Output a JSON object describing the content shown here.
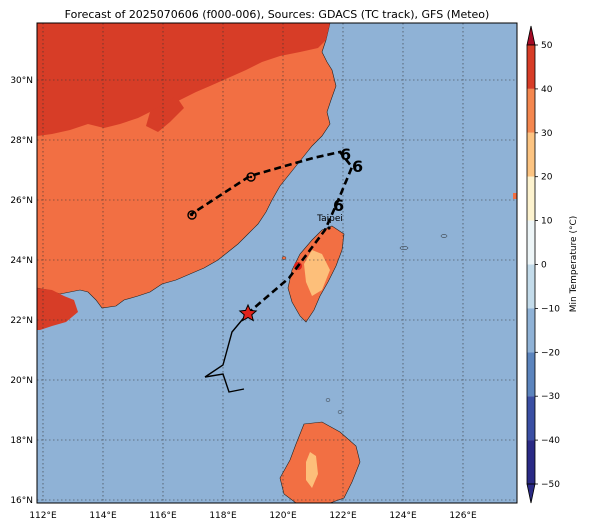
{
  "title": "Forecast of 2025070606 (f000-006), Sources: GDACS (TC track), GFS (Meteo)",
  "colorbar": {
    "label": "Min Temperature (°C)",
    "ticks": [
      "50",
      "40",
      "30",
      "20",
      "10",
      "0",
      "−10",
      "−20",
      "−30",
      "−40",
      "−50"
    ],
    "colors": [
      "#2a2a85",
      "#3a4fa3",
      "#5b84bd",
      "#8fb2d6",
      "#c3dbea",
      "#eef6f8",
      "#fdf3cf",
      "#fcc482",
      "#f4874f",
      "#d73d27",
      "#a50b25"
    ]
  },
  "map": {
    "lon_range": [
      111.8,
      127.8
    ],
    "lat_range": [
      15.9,
      31.9
    ],
    "x_ticks": [
      "112°E",
      "114°E",
      "116°E",
      "118°E",
      "120°E",
      "122°E",
      "124°E",
      "126°E"
    ],
    "y_ticks": [
      "30°N",
      "28°N",
      "26°N",
      "24°N",
      "22°N",
      "20°N",
      "18°N",
      "16°N"
    ],
    "city_label": "Taipei",
    "ocean_color": "#8fb2d6",
    "land_color": "#f26f43",
    "warm_land_color": "#d73d27",
    "hot_spot_color": "#fdbf7a"
  },
  "track": {
    "storm_position": "star",
    "past_track": [
      [
        117.4,
        20.1
      ],
      [
        118.0,
        20.2
      ],
      [
        118.2,
        19.6
      ],
      [
        118.7,
        19.7
      ]
    ],
    "observed_track": [
      [
        117.4,
        20.1
      ],
      [
        118.0,
        20.5
      ],
      [
        118.3,
        21.6
      ],
      [
        118.8,
        22.2
      ]
    ],
    "forecast_track": [
      [
        118.8,
        22.2
      ],
      [
        120.2,
        23.4
      ],
      [
        121.4,
        25.0
      ],
      [
        121.8,
        25.9
      ],
      [
        122.3,
        27.1
      ],
      [
        121.9,
        27.6
      ],
      [
        121.0,
        27.4
      ],
      [
        120.3,
        27.2
      ],
      [
        118.9,
        26.8
      ],
      [
        116.9,
        25.5
      ]
    ]
  }
}
